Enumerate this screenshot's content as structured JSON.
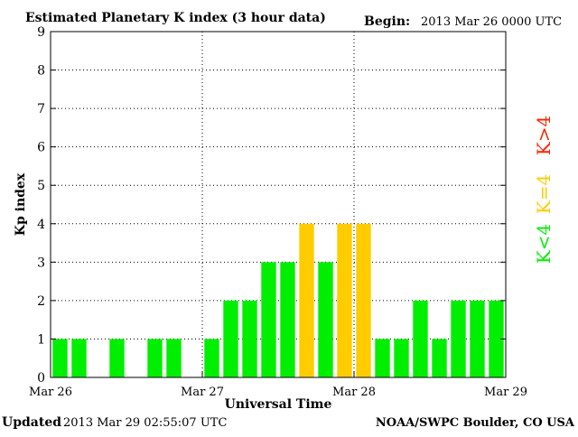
{
  "title": "Estimated Planetary K index (3 hour data)",
  "begin_label": "Begin:",
  "begin_value": "2013 Mar 26 0000 UTC",
  "updated_label": "Updated",
  "updated_value": "2013 Mar 29 02:55:07 UTC",
  "source": "NOAA/SWPC Boulder, CO USA",
  "legend": [
    {
      "label": "K<4",
      "color": "#00ee00"
    },
    {
      "label": "K=4",
      "color": "#ffcc00"
    },
    {
      "label": "K>4",
      "color": "#ff2200"
    }
  ],
  "chart_data": {
    "type": "bar",
    "title": "Estimated Planetary K index (3 hour data)",
    "xlabel": "Universal Time",
    "ylabel": "Kp index",
    "ylim": [
      0,
      9
    ],
    "yticks": [
      0,
      1,
      2,
      3,
      4,
      5,
      6,
      7,
      8,
      9
    ],
    "xticks": [
      "Mar 26",
      "Mar 27",
      "Mar 28",
      "Mar 29"
    ],
    "grid": true,
    "interval_hours": 3,
    "values": [
      1,
      1,
      0,
      1,
      0,
      1,
      1,
      0,
      1,
      2,
      2,
      3,
      3,
      4,
      3,
      4,
      4,
      1,
      1,
      2,
      1,
      2,
      2,
      2
    ],
    "colors": {
      "below_4": "#00ee00",
      "equal_4": "#ffcc00",
      "above_4": "#ff2200"
    }
  }
}
